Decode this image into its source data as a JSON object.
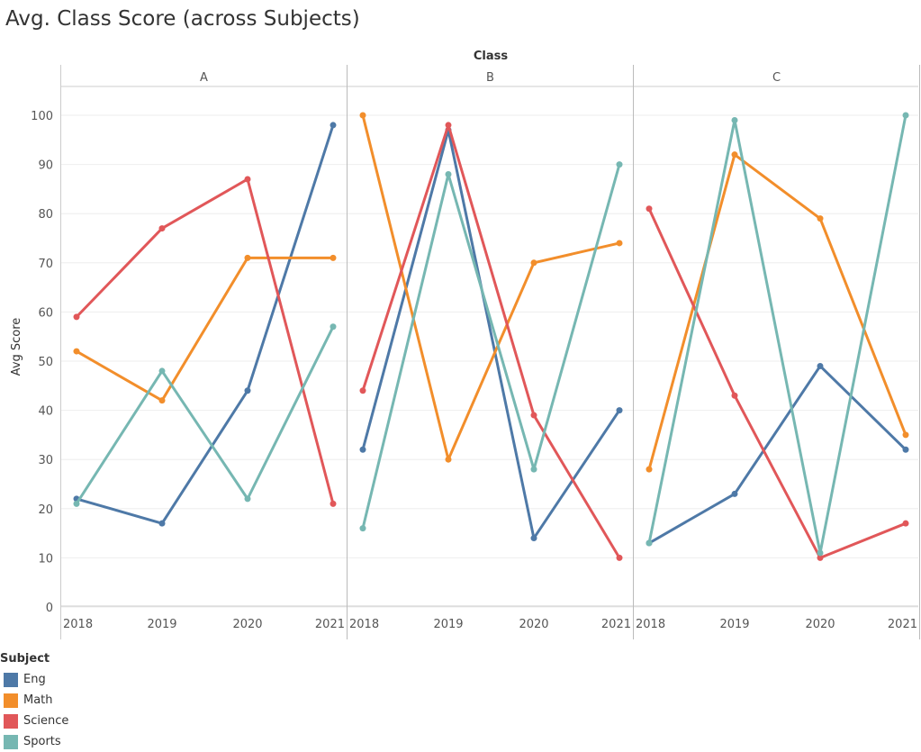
{
  "chart_data": {
    "type": "line",
    "title": "Avg. Class Score (across Subjects)",
    "facet_label": "Class",
    "facets": [
      "A",
      "B",
      "C"
    ],
    "x": [
      "2018",
      "2019",
      "2020",
      "2021"
    ],
    "ylabel": "Avg Score",
    "ylim": [
      0,
      100
    ],
    "yticks": [
      0,
      10,
      20,
      30,
      40,
      50,
      60,
      70,
      80,
      90,
      100
    ],
    "grid": true,
    "legend_title": "Subject",
    "legend_position": "bottom-left",
    "series": [
      {
        "name": "Eng",
        "color": "#4e79a7",
        "values": {
          "A": [
            22,
            17,
            44,
            98
          ],
          "B": [
            32,
            97,
            14,
            40
          ],
          "C": [
            13,
            23,
            49,
            32
          ]
        }
      },
      {
        "name": "Math",
        "color": "#f28e2b",
        "values": {
          "A": [
            52,
            42,
            71,
            71
          ],
          "B": [
            100,
            30,
            70,
            74
          ],
          "C": [
            28,
            92,
            79,
            35
          ]
        }
      },
      {
        "name": "Science",
        "color": "#e15759",
        "values": {
          "A": [
            59,
            77,
            87,
            21
          ],
          "B": [
            44,
            98,
            39,
            10
          ],
          "C": [
            81,
            43,
            10,
            17
          ]
        }
      },
      {
        "name": "Sports",
        "color": "#76b7b2",
        "values": {
          "A": [
            21,
            48,
            22,
            57
          ],
          "B": [
            16,
            88,
            28,
            90
          ],
          "C": [
            13,
            99,
            11,
            100
          ]
        }
      }
    ]
  }
}
